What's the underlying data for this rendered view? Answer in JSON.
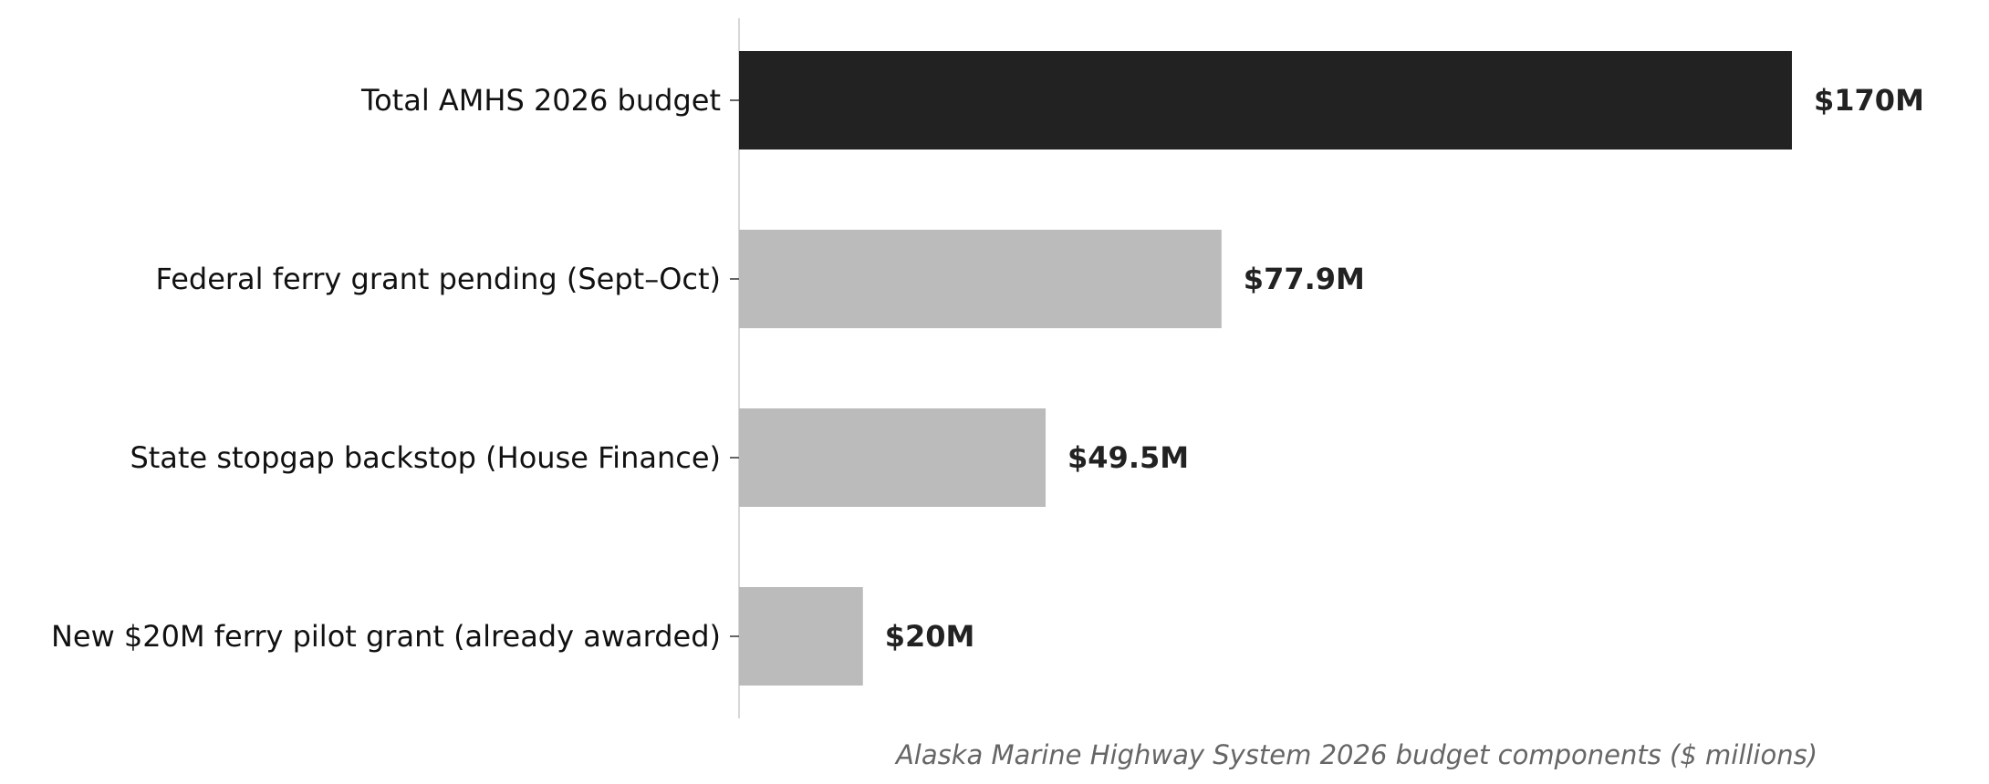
{
  "chart_data": {
    "type": "bar",
    "orientation": "horizontal",
    "categories": [
      "Total AMHS 2026 budget",
      "Federal ferry grant pending (Sept–Oct)",
      "State stopgap backstop (House Finance)",
      "New $20M ferry pilot grant (already awarded)"
    ],
    "values": [
      170,
      77.9,
      49.5,
      20
    ],
    "value_labels": [
      "$170M",
      "$77.9M",
      "$49.5M",
      "$20M"
    ],
    "bar_colors": [
      "#222222",
      "#bbbbbb",
      "#bbbbbb",
      "#bbbbbb"
    ],
    "xlabel": "Alaska Marine Highway System 2026 budget components ($ millions)",
    "xlim": [
      0,
      170
    ],
    "grid": false,
    "legend": false
  }
}
